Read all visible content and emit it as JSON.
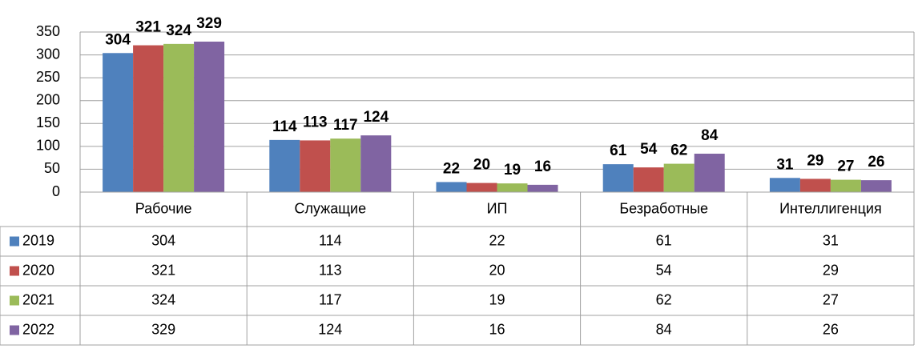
{
  "chart_data": {
    "type": "bar",
    "categories": [
      "Рабочие",
      "Служащие",
      "ИП",
      "Безработные",
      "Интеллигенция"
    ],
    "series": [
      {
        "name": "2019",
        "color": "#4f81bd",
        "values": [
          304,
          114,
          22,
          61,
          31
        ]
      },
      {
        "name": "2020",
        "color": "#c0504d",
        "values": [
          321,
          113,
          20,
          54,
          29
        ]
      },
      {
        "name": "2021",
        "color": "#9bbb59",
        "values": [
          324,
          117,
          19,
          62,
          27
        ]
      },
      {
        "name": "2022",
        "color": "#8064a2",
        "values": [
          329,
          124,
          16,
          84,
          26
        ]
      }
    ],
    "ylim": [
      0,
      350
    ],
    "yticks": [
      0,
      50,
      100,
      150,
      200,
      250,
      300,
      350
    ],
    "grid": true,
    "data_table": true
  }
}
